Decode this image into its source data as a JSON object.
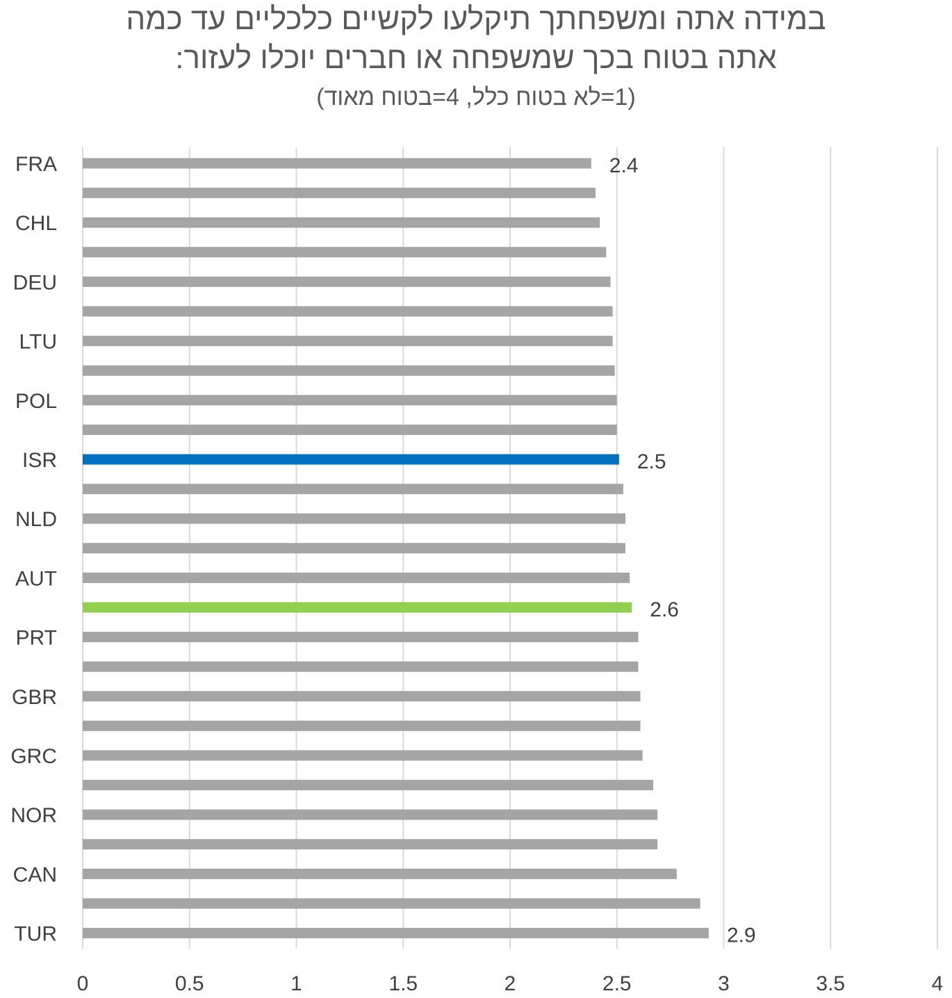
{
  "chart_data": {
    "type": "bar",
    "orientation": "horizontal",
    "title_lines": [
      "במידה אתה ומשפחתך תיקלעו לקשיים כלכליים עד כמה",
      "אתה בטוח בכך שמשפחה או חברים יוכלו לעזור:"
    ],
    "subtitle": "(1=לא בטוח כלל, 4=בטוח מאוד)",
    "xlabel": "",
    "ylabel": "",
    "xlim": [
      0,
      4
    ],
    "x_ticks": [
      "0",
      "0.5",
      "1",
      "1.5",
      "2",
      "2.5",
      "3",
      "3.5",
      "4"
    ],
    "grid": "vertical",
    "categories": [
      "FRA",
      "",
      "CHL",
      "",
      "DEU",
      "",
      "LTU",
      "",
      "POL",
      "",
      "ISR",
      "",
      "NLD",
      "",
      "AUT",
      "",
      "PRT",
      "",
      "GBR",
      "",
      "GRC",
      "",
      "NOR",
      "",
      "CAN",
      "",
      "TUR"
    ],
    "values": [
      2.38,
      2.4,
      2.42,
      2.45,
      2.47,
      2.48,
      2.48,
      2.49,
      2.5,
      2.5,
      2.51,
      2.53,
      2.54,
      2.54,
      2.56,
      2.57,
      2.6,
      2.6,
      2.61,
      2.61,
      2.62,
      2.67,
      2.69,
      2.69,
      2.78,
      2.89,
      2.93
    ],
    "bar_colors": [
      "#A5A5A5",
      "#A5A5A5",
      "#A5A5A5",
      "#A5A5A5",
      "#A5A5A5",
      "#A5A5A5",
      "#A5A5A5",
      "#A5A5A5",
      "#A5A5A5",
      "#A5A5A5",
      "#0070C0",
      "#A5A5A5",
      "#A5A5A5",
      "#A5A5A5",
      "#A5A5A5",
      "#92D050",
      "#A5A5A5",
      "#A5A5A5",
      "#A5A5A5",
      "#A5A5A5",
      "#A5A5A5",
      "#A5A5A5",
      "#A5A5A5",
      "#A5A5A5",
      "#A5A5A5",
      "#A5A5A5",
      "#A5A5A5"
    ],
    "data_labels": [
      "2.4",
      "",
      "",
      "",
      "",
      "",
      "",
      "",
      "",
      "",
      "2.5",
      "",
      "",
      "",
      "",
      "2.6",
      "",
      "",
      "",
      "",
      "",
      "",
      "",
      "",
      "",
      "",
      "2.9"
    ],
    "colors": {
      "default": "#A5A5A5",
      "highlight_blue": "#0070C0",
      "highlight_green": "#92D050",
      "grid": "#D9D9D9",
      "text": "#404040"
    }
  }
}
